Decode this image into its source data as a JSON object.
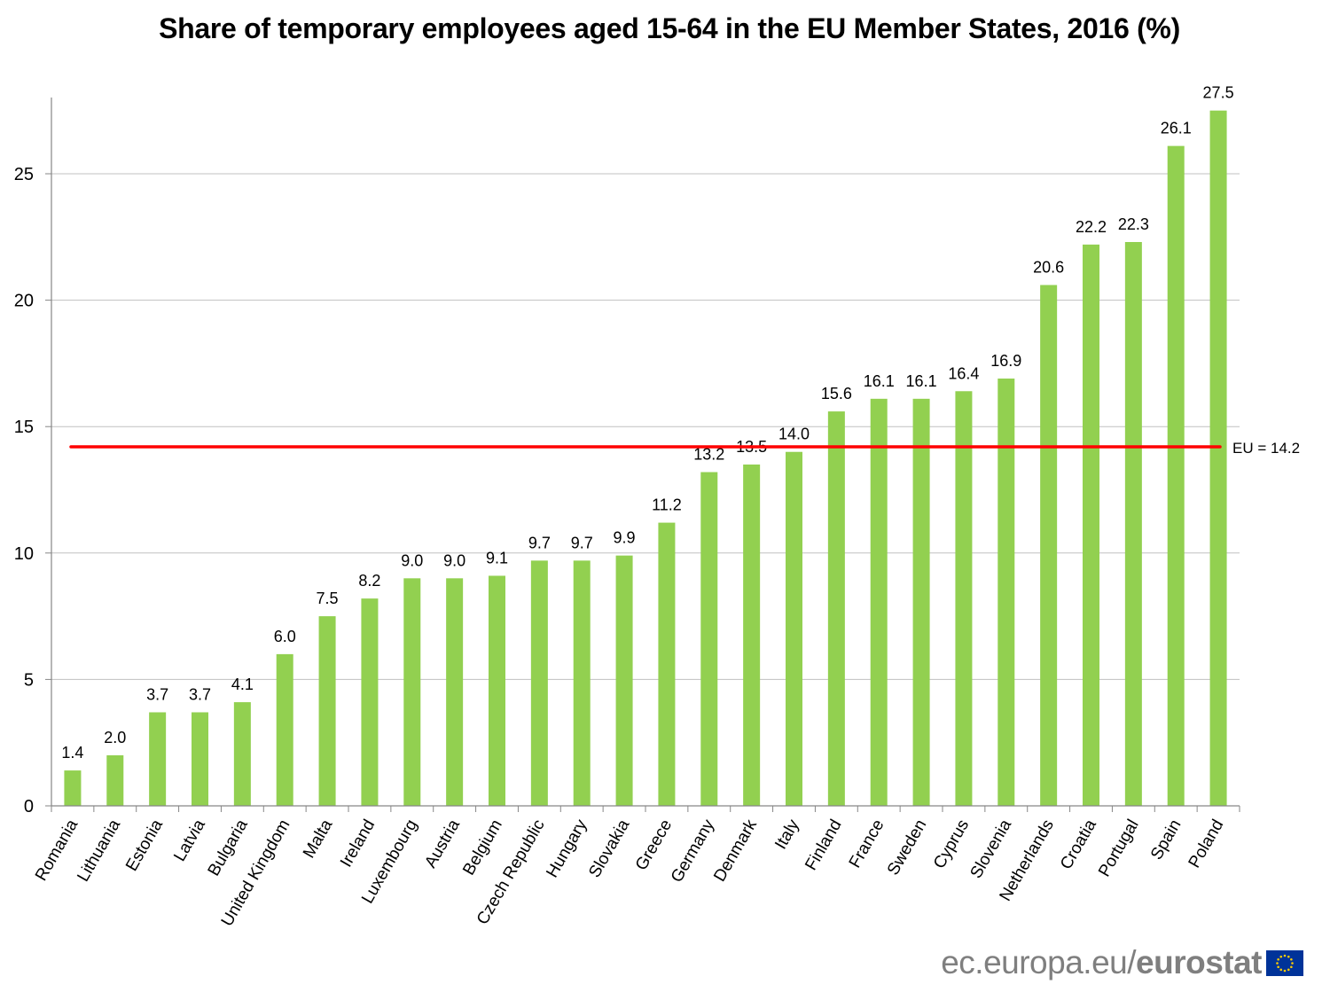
{
  "chart_data": {
    "type": "bar",
    "title": "Share of temporary employees aged 15-64 in the EU Member States, 2016 (%)",
    "xlabel": "",
    "ylabel": "",
    "ylim": [
      0,
      28
    ],
    "yticks": [
      0,
      5,
      10,
      15,
      20,
      25
    ],
    "grid": true,
    "legend": "none",
    "bar_color": "#92d050",
    "categories": [
      "Romania",
      "Lithuania",
      "Estonia",
      "Latvia",
      "Bulgaria",
      "United Kingdom",
      "Malta",
      "Ireland",
      "Luxembourg",
      "Austria",
      "Belgium",
      "Czech Republic",
      "Hungary",
      "Slovakia",
      "Greece",
      "Germany",
      "Denmark",
      "Italy",
      "Finland",
      "France",
      "Sweden",
      "Cyprus",
      "Slovenia",
      "Netherlands",
      "Croatia",
      "Portugal",
      "Spain",
      "Poland"
    ],
    "values": [
      1.4,
      2.0,
      3.7,
      3.7,
      4.1,
      6.0,
      7.5,
      8.2,
      9.0,
      9.0,
      9.1,
      9.7,
      9.7,
      9.9,
      11.2,
      13.2,
      13.5,
      14.0,
      15.6,
      16.1,
      16.1,
      16.4,
      16.9,
      20.6,
      22.2,
      22.3,
      26.1,
      27.5
    ],
    "data_labels": [
      "1.4",
      "2.0",
      "3.7",
      "3.7",
      "4.1",
      "6.0",
      "7.5",
      "8.2",
      "9.0",
      "9.0",
      "9.1",
      "9.7",
      "9.7",
      "9.9",
      "11.2",
      "13.2",
      "13.5",
      "14.0",
      "15.6",
      "16.1",
      "16.1",
      "16.4",
      "16.9",
      "20.6",
      "22.2",
      "22.3",
      "26.1",
      "27.5"
    ],
    "reference_line": {
      "label": "EU = 14.2",
      "value": 14.2,
      "color": "#ff0000"
    }
  },
  "footer": {
    "source_prefix": "ec.europa.eu/",
    "source_brand": "eurostat",
    "flag_icon": "eu-flag-icon"
  },
  "colors": {
    "grid": "#c0c0c0",
    "axis": "#868686",
    "flag_blue": "#003399",
    "flag_star": "#ffcc00"
  }
}
